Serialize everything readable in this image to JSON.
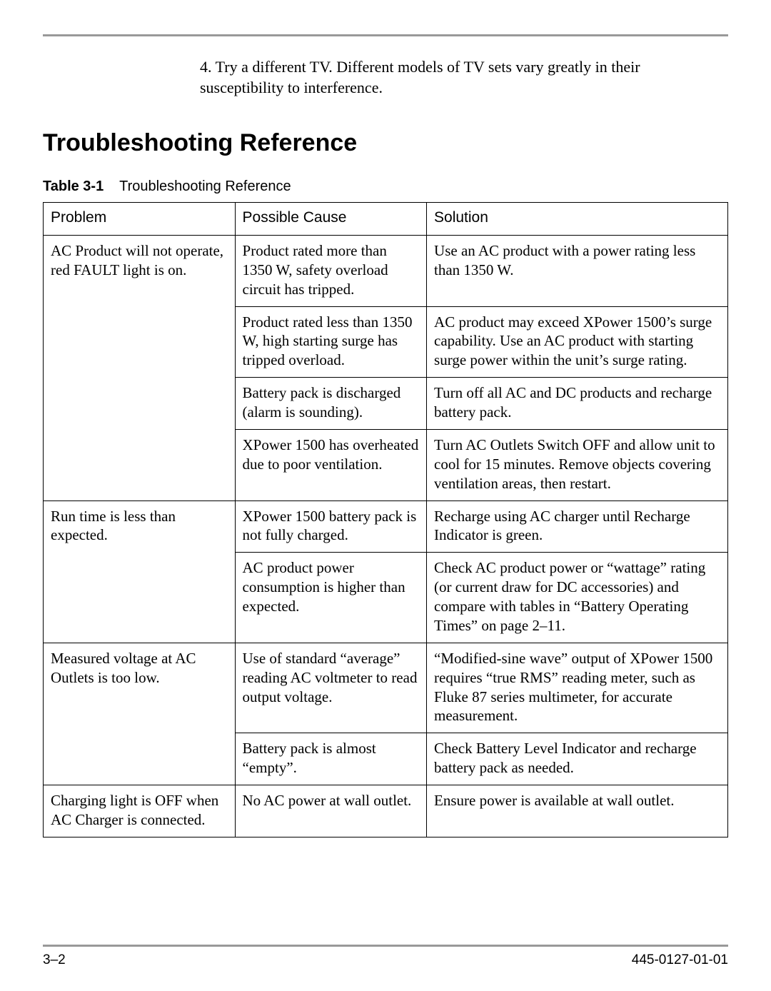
{
  "colors": {
    "page_bg": "#ffffff",
    "text": "#000000",
    "rule": "#999999",
    "table_border": "#000000"
  },
  "typography": {
    "body_family": "Times New Roman",
    "heading_family": "Arial",
    "body_pt": 21,
    "intro_pt": 22,
    "h2_pt": 34,
    "caption_pt": 20,
    "footer_pt": 19
  },
  "intro": {
    "text": "4.   Try a different TV. Different models of TV sets vary greatly in their susceptibility to interference."
  },
  "heading": "Troubleshooting Reference",
  "table_caption": {
    "label": "Table 3-1",
    "title": "Troubleshooting Reference"
  },
  "table": {
    "type": "table",
    "column_widths_pct": [
      28,
      28,
      44
    ],
    "border_color": "#000000",
    "header_bg": "#ffffff",
    "columns": [
      "Problem",
      "Possible Cause",
      "Solution"
    ],
    "groups": [
      {
        "problem": "AC Product will not operate, red FAULT light is on.",
        "rows": [
          {
            "cause": "Product rated more than 1350 W, safety overload circuit has tripped.",
            "solution": "Use an AC product with a power rating less than 1350 W."
          },
          {
            "cause": "Product rated less than 1350 W, high starting surge has tripped overload.",
            "solution": "AC product may exceed XPower 1500’s surge capability. Use an AC product with starting surge power within the unit’s surge rating."
          },
          {
            "cause": "Battery pack is discharged (alarm is sounding).",
            "solution": "Turn off all AC and DC products and recharge battery pack."
          },
          {
            "cause": "XPower 1500 has overheated due to poor ventilation.",
            "solution": "Turn AC Outlets Switch OFF and allow unit to cool for 15 minutes. Remove objects covering ventilation areas, then restart."
          }
        ]
      },
      {
        "problem": "Run time is less than expected.",
        "rows": [
          {
            "cause": "XPower 1500 battery pack is not fully charged.",
            "solution": "Recharge using AC charger until Recharge Indicator is green."
          },
          {
            "cause": "AC product power consumption is higher than expected.",
            "solution": "Check AC product power or “wattage” rating (or current draw for DC accessories) and compare with tables in “Battery Operating Times” on page 2–11."
          }
        ]
      },
      {
        "problem": "Measured voltage at AC Outlets is too low.",
        "rows": [
          {
            "cause": "Use of standard “average” reading AC voltmeter to read output voltage.",
            "solution": "“Modified-sine wave” output of XPower 1500 requires “true RMS” reading meter, such as Fluke 87 series multimeter, for accurate measurement."
          },
          {
            "cause": "Battery pack is almost “empty”.",
            "solution": "Check Battery Level Indicator and recharge battery pack as needed."
          }
        ]
      },
      {
        "problem": "Charging light is OFF when AC Charger is connected.",
        "rows": [
          {
            "cause": "No AC power at wall outlet.",
            "solution": "Ensure power is available at wall outlet."
          }
        ]
      }
    ]
  },
  "footer": {
    "left": "3–2",
    "right": "445-0127-01-01"
  }
}
